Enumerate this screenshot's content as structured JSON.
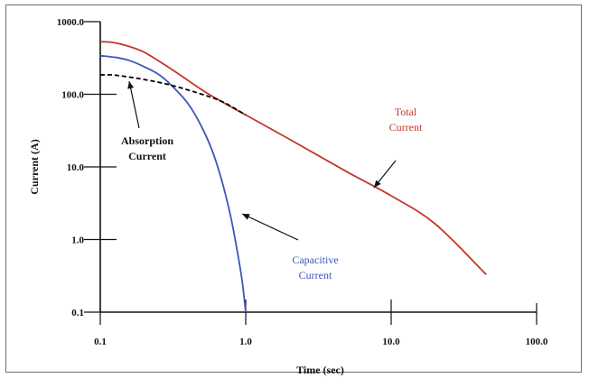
{
  "chart_data": {
    "type": "line",
    "xscale": "log",
    "yscale": "log",
    "xlim": [
      0.1,
      100
    ],
    "ylim": [
      0.1,
      1000
    ],
    "xlabel": "Time (sec)",
    "ylabel": "Current (A)",
    "x_tick_labels": [
      "0.1",
      "1.0",
      "10.0",
      "100.0"
    ],
    "y_tick_labels": [
      "1000.0",
      "100.0",
      "10.0",
      "1.0",
      "0.1"
    ],
    "grid": false,
    "series": [
      {
        "name": "Total Current",
        "color": "#c0392b",
        "style": "solid",
        "x": [
          0.1,
          0.12,
          0.15,
          0.2,
          0.3,
          0.5,
          0.7,
          1.0,
          2.0,
          5.0,
          10.0,
          20.0,
          45.0
        ],
        "y": [
          530,
          520,
          470,
          380,
          230,
          115,
          77,
          52,
          24,
          8.5,
          4.0,
          1.65,
          0.33
        ]
      },
      {
        "name": "Capacitive Current",
        "color": "#3a56b8",
        "style": "solid",
        "x": [
          0.1,
          0.13,
          0.16,
          0.2,
          0.25,
          0.3,
          0.4,
          0.5,
          0.6,
          0.7,
          0.8,
          0.9,
          0.95,
          1.0
        ],
        "y": [
          340,
          320,
          290,
          240,
          190,
          140,
          75,
          35,
          15,
          5.5,
          1.8,
          0.5,
          0.25,
          0.1
        ]
      },
      {
        "name": "Absorption Current",
        "color": "#000000",
        "style": "dashed",
        "x": [
          0.1,
          0.12,
          0.15,
          0.2,
          0.3,
          0.5,
          0.7,
          1.0
        ],
        "y": [
          185,
          185,
          175,
          160,
          135,
          100,
          78,
          52
        ]
      }
    ],
    "annotations": [
      {
        "text": [
          "Absorption",
          "Current"
        ],
        "color": "#000000"
      },
      {
        "text": [
          "Total",
          "Current"
        ],
        "color": "#c0392b"
      },
      {
        "text": [
          "Capacitive",
          "Current"
        ],
        "color": "#3a56b8"
      }
    ]
  }
}
